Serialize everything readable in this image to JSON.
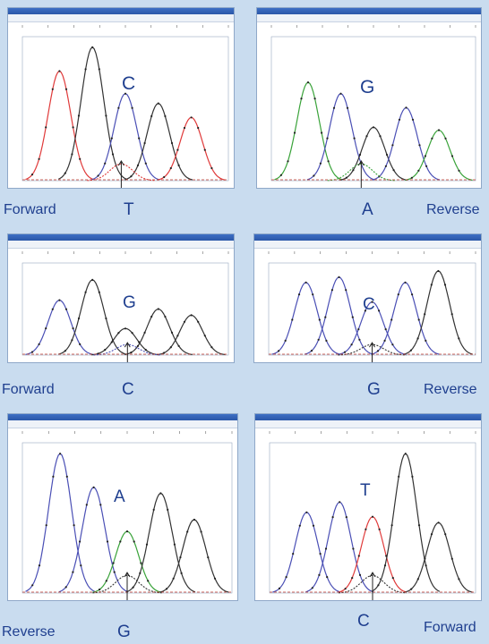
{
  "panels": [
    {
      "id": "p1",
      "main_base": "C",
      "alt_base": "T",
      "direction": "Forward",
      "colors": [
        "#e03a3a",
        "#333333",
        "#4a4fb5",
        "#333333",
        "#e03a3a"
      ],
      "alt_color": "#e03a3a",
      "center_x": 0.48
    },
    {
      "id": "p2",
      "main_base": "G",
      "alt_base": "A",
      "direction": "Reverse",
      "colors": [
        "#3aa33a",
        "#4a4fb5",
        "#333333",
        "#4a4fb5",
        "#3aa33a"
      ],
      "alt_color": "#3aa33a",
      "center_x": 0.44
    },
    {
      "id": "p3",
      "main_base": "G",
      "alt_base": "C",
      "direction": "Forward",
      "colors": [
        "#4a4fb5",
        "#333333",
        "#333333",
        "#333333",
        "#333333"
      ],
      "alt_color": "#4a4fb5",
      "center_x": 0.51
    },
    {
      "id": "p4",
      "main_base": "C",
      "alt_base": "G",
      "direction": "Reverse",
      "colors": [
        "#4a4fb5",
        "#4a4fb5",
        "#4a4fb5",
        "#4a4fb5",
        "#333333"
      ],
      "alt_color": "#333333",
      "center_x": 0.5
    },
    {
      "id": "p5",
      "main_base": "A",
      "alt_base": "G",
      "direction": "Reverse",
      "colors": [
        "#4a4fb5",
        "#4a4fb5",
        "#3aa33a",
        "#333333",
        "#333333"
      ],
      "alt_color": "#333333",
      "center_x": 0.5
    },
    {
      "id": "p6",
      "main_base": "T",
      "alt_base": "C",
      "direction": "Forward",
      "colors": [
        "#4a4fb5",
        "#4a4fb5",
        "#e03a3a",
        "#333333",
        "#333333"
      ],
      "alt_color": "#333333",
      "center_x": 0.5
    }
  ]
}
